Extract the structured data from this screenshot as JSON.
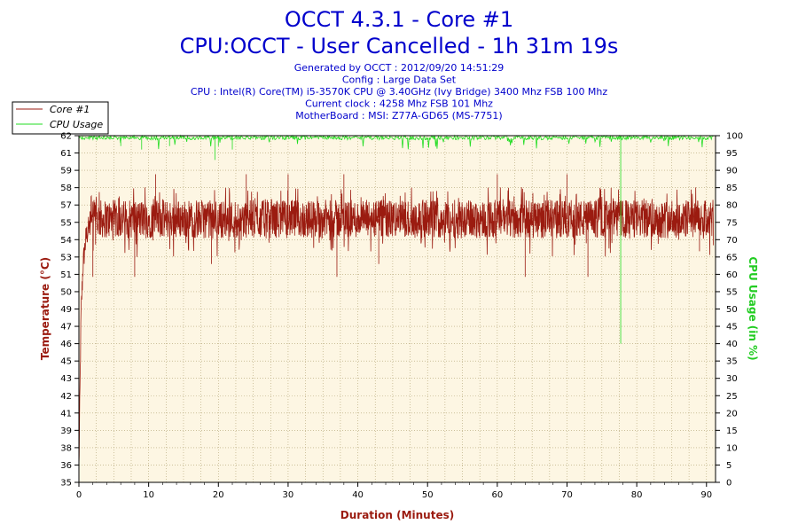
{
  "header": {
    "title_line1": "OCCT 4.3.1 - Core #1",
    "title_line2": "CPU:OCCT - User Cancelled - 1h 31m 19s",
    "info_lines": [
      "Generated by OCCT : 2012/09/20 14:51:29",
      "Config : Large Data Set",
      "CPU : Intel(R) Core(TM) i5-3570K CPU @ 3.40GHz (Ivy Bridge) 3400 Mhz FSB 100 Mhz",
      "Current clock : 4258 Mhz FSB 101 Mhz",
      "MotherBoard : MSI: Z77A-GD65 (MS-7751)"
    ]
  },
  "colors": {
    "temperature": "#9b1b10",
    "cpu_usage": "#22dd22",
    "plot_background": "#fdf6e3",
    "grid": "#b0a070",
    "title": "#0000cc"
  },
  "chart_data": {
    "type": "line",
    "xlabel": "Duration (Minutes)",
    "ylabel_left": "Temperature (°C)",
    "ylabel_right": "CPU Usage (in %)",
    "xlim": [
      0,
      91.3
    ],
    "ylim_left": [
      35,
      62
    ],
    "ylim_right": [
      0,
      100
    ],
    "x_ticks": [
      0,
      10,
      20,
      30,
      40,
      50,
      60,
      70,
      80,
      90
    ],
    "y_left_ticks": [
      35,
      36,
      38,
      39,
      41,
      42,
      43,
      45,
      46,
      47,
      49,
      50,
      51,
      53,
      54,
      55,
      57,
      58,
      59,
      61,
      62
    ],
    "y_right_ticks": [
      0,
      5,
      10,
      15,
      20,
      25,
      30,
      35,
      40,
      45,
      50,
      55,
      60,
      65,
      70,
      75,
      80,
      85,
      90,
      95,
      100
    ],
    "grid": true,
    "legend_position": "top-left",
    "series": [
      {
        "name": "Core #1",
        "axis": "left",
        "baseline_range": [
          54,
          57
        ],
        "x": [
          0,
          0.3,
          0.6,
          1,
          1.5,
          2,
          3,
          5,
          8,
          10,
          12,
          15,
          18,
          19.5,
          20,
          22,
          25,
          28,
          30,
          33,
          36,
          38,
          40,
          43,
          46,
          50,
          53,
          56,
          60,
          63,
          66,
          70,
          72,
          75,
          78,
          80,
          83,
          86,
          88,
          90,
          91
        ],
        "values": [
          36,
          48,
          52,
          54,
          55,
          56,
          55,
          56,
          55,
          56,
          55,
          56,
          55,
          52,
          55,
          56,
          55,
          56,
          57,
          56,
          56,
          55,
          56,
          55,
          56,
          56,
          55,
          56,
          56,
          55,
          56,
          55,
          56,
          56,
          55,
          56,
          55,
          56,
          55,
          56,
          55
        ],
        "spikes_high": [
          [
            11,
            59
          ],
          [
            24,
            59
          ],
          [
            30,
            59
          ],
          [
            38,
            59
          ],
          [
            60,
            59
          ],
          [
            70,
            59
          ]
        ],
        "spikes_low": [
          [
            2,
            51
          ],
          [
            8,
            51
          ],
          [
            19,
            52
          ],
          [
            37,
            51
          ],
          [
            43,
            52
          ],
          [
            64,
            51
          ],
          [
            73,
            51
          ],
          [
            89,
            53
          ]
        ]
      },
      {
        "name": "CPU Usage",
        "axis": "right",
        "x": [
          0,
          6,
          9,
          13,
          19.5,
          20,
          22,
          35,
          50,
          65,
          77.5,
          77.7,
          77.9,
          85,
          91
        ],
        "values": [
          100,
          97,
          96,
          97,
          93,
          97,
          96,
          99,
          100,
          100,
          100,
          40,
          100,
          100,
          100
        ]
      }
    ]
  }
}
